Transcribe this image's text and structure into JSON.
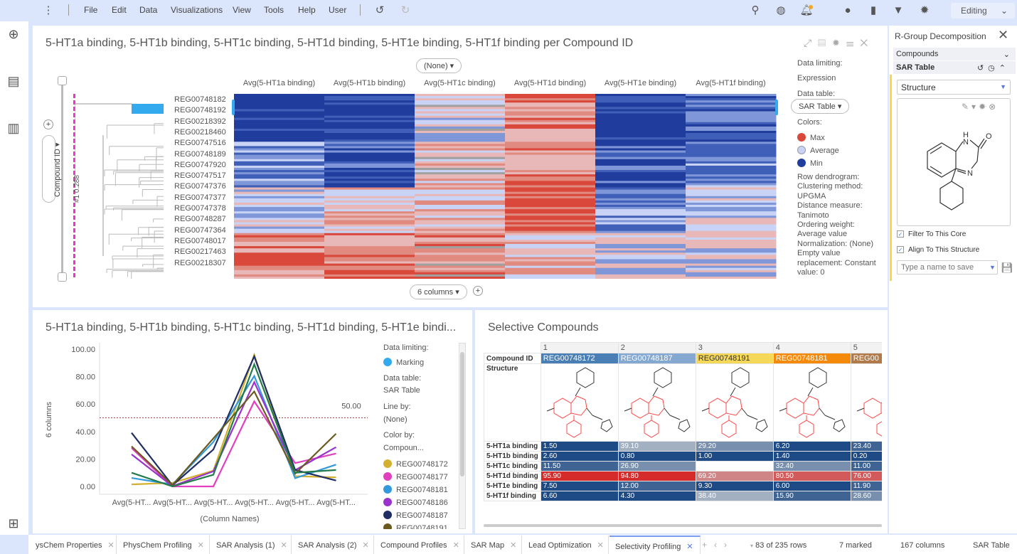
{
  "menu": {
    "items": [
      "File",
      "Edit",
      "Data",
      "Visualizations",
      "View",
      "Tools",
      "Help",
      "User"
    ],
    "mode": "Editing",
    "icons": [
      "more-vertical-icon",
      "undo-icon",
      "redo-icon",
      "search-icon",
      "globe-icon",
      "notification-bell-icon",
      "comment-icon",
      "bookmark-icon",
      "filter-icon",
      "settings-icon"
    ]
  },
  "rail": {
    "icons": [
      "add-icon",
      "data-table-icon",
      "visualization-icon",
      "hierarchy-icon"
    ]
  },
  "heatmap": {
    "title": "5-HT1a binding, 5-HT1b binding, 5-HT1c binding, 5-HT1d binding, 5-HT1e binding, 5-HT1f binding per Compound ID",
    "none_selector": "(None)",
    "columns_selector": "6 columns",
    "row_axis": "Compound ID",
    "cut_label": "#1  0.288",
    "columns": [
      "Avg(5-HT1a binding)",
      "Avg(5-HT1b binding)",
      "Avg(5-HT1c binding)",
      "Avg(5-HT1d binding)",
      "Avg(5-HT1e binding)",
      "Avg(5-HT1f binding)"
    ],
    "row_labels": [
      "REG00748182",
      "REG00748192",
      "REG00218392",
      "REG00218460",
      "REG00747516",
      "REG00748189",
      "REG00747920",
      "REG00747517",
      "REG00747376",
      "REG00747377",
      "REG00747378",
      "REG00748287",
      "REG00747364",
      "REG00748017",
      "REG00217463",
      "REG00218307"
    ],
    "legend": {
      "data_limiting_label": "Data limiting:",
      "data_limiting_value": "Expression",
      "data_table_label": "Data table:",
      "data_table_value": "SAR Table",
      "colors_label": "Colors:",
      "colors": [
        {
          "label": "Max",
          "color": "#d9483b"
        },
        {
          "label": "Average",
          "color": "#c9d3f5"
        },
        {
          "label": "Min",
          "color": "#203c9c"
        }
      ],
      "info": [
        "Row dendrogram:",
        "Clustering method:",
        "UPGMA",
        "Distance measure:",
        "Tanimoto",
        "Ordering weight:",
        "Average value",
        "Normalization: (None)",
        "Empty value",
        "replacement: Constant",
        "value: 0"
      ]
    }
  },
  "linechart": {
    "title": "5-HT1a binding, 5-HT1b binding, 5-HT1c binding, 5-HT1d binding, 5-HT1e bindi...",
    "legend": {
      "data_limiting_label": "Data limiting:",
      "data_limiting_value": "Marking",
      "data_table_label": "Data table:",
      "data_table_value": "SAR Table",
      "line_by_label": "Line by:",
      "line_by_value": "(None)",
      "color_by_label": "Color by:",
      "color_by_value": "Compoun...",
      "marking_color": "#33aaee"
    }
  },
  "chart_data": {
    "type": "line",
    "xlabel": "(Column Names)",
    "ylabel": "6 columns",
    "ylim": [
      0,
      100
    ],
    "yticks": [
      "0.00",
      "20.00",
      "40.00",
      "60.00",
      "80.00",
      "100.00"
    ],
    "categories": [
      "Avg(5-HT...",
      "Avg(5-HT...",
      "Avg(5-HT...",
      "Avg(5-HT...",
      "Avg(5-HT...",
      "Avg(5-HT..."
    ],
    "reference_line": {
      "value": 50,
      "label": "50.00",
      "color": "#a04040"
    },
    "series": [
      {
        "name": "REG00748172",
        "color": "#d4b030",
        "values": [
          1.5,
          2.6,
          11.5,
          95.9,
          7.5,
          6.6
        ]
      },
      {
        "name": "REG00748177",
        "color": "#e040c0",
        "values": [
          28,
          0,
          0,
          62,
          17,
          24
        ]
      },
      {
        "name": "REG00748181",
        "color": "#3399dd",
        "values": [
          6.2,
          1.4,
          32.4,
          80.5,
          6.0,
          15.9
        ]
      },
      {
        "name": "REG00748186",
        "color": "#9933cc",
        "values": [
          23.4,
          0.2,
          11.0,
          76.0,
          11.9,
          28.6
        ]
      },
      {
        "name": "REG00748187",
        "color": "#1f2f66",
        "values": [
          39.1,
          0.8,
          26.9,
          94.8,
          12.0,
          4.3
        ]
      },
      {
        "name": "REG00748191",
        "color": "#6b5a20",
        "values": [
          29.2,
          1.0,
          35,
          69.2,
          9.3,
          38.4
        ]
      },
      {
        "color": "#237a4a",
        "values": [
          10,
          0,
          8.5,
          89,
          10,
          12
        ]
      }
    ]
  },
  "sar_table": {
    "title": "Selective Compounds",
    "col_numbers": [
      "1",
      "2",
      "3",
      "4",
      "5"
    ],
    "compound_id_label": "Compound ID",
    "structure_label": "Structure",
    "compounds": [
      {
        "id": "REG00748172",
        "color": "#4a7fb5"
      },
      {
        "id": "REG00748187",
        "color": "#85a8d0"
      },
      {
        "id": "REG00748191",
        "color": "#f5d858"
      },
      {
        "id": "REG00748181",
        "color": "#f58a0a"
      },
      {
        "id": "REG00",
        "color": "#b07a4a"
      }
    ],
    "rows": [
      {
        "label": "5-HT1a binding",
        "values": [
          "1.50",
          "39.10",
          "29.20",
          "6.20",
          "23.40"
        ]
      },
      {
        "label": "5-HT1b binding",
        "values": [
          "2.60",
          "0.80",
          "1.00",
          "1.40",
          "0.20"
        ]
      },
      {
        "label": "5-HT1c binding",
        "values": [
          "11.50",
          "26.90",
          "",
          "32.40",
          "11.00"
        ]
      },
      {
        "label": "5-HT1d binding",
        "values": [
          "95.90",
          "94.80",
          "69.20",
          "80.50",
          "76.00"
        ]
      },
      {
        "label": "5-HT1e binding",
        "values": [
          "7.50",
          "12.00",
          "9.30",
          "6.00",
          "11.90"
        ]
      },
      {
        "label": "5-HT1f binding",
        "values": [
          "6.60",
          "4.30",
          "38.40",
          "15.90",
          "28.60"
        ]
      }
    ]
  },
  "rgroup": {
    "title": "R-Group Decomposition",
    "compounds_label": "Compounds",
    "sar_table_label": "SAR Table",
    "structure_select": "Structure",
    "filter_label": "Filter To This Core",
    "align_label": "Align To This Structure",
    "save_placeholder": "Type a name to save"
  },
  "tabs": {
    "items": [
      "ysChem Properties",
      "PhysChem Profiling",
      "SAR Analysis (1)",
      "SAR Analysis (2)",
      "Compound Profiles",
      "SAR Map",
      "Lead Optimization",
      "Selectivity Profiling"
    ],
    "active": 7
  },
  "status": {
    "rows": "83 of 235 rows",
    "marked": "7 marked",
    "columns": "167 columns",
    "table": "SAR Table"
  }
}
